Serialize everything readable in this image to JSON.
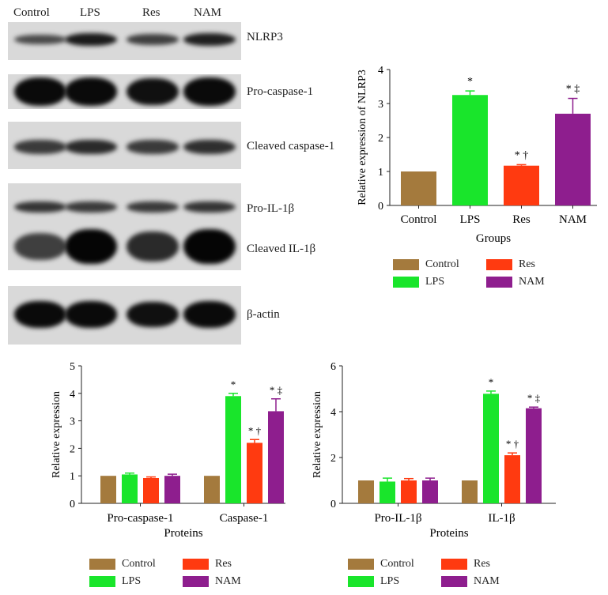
{
  "blot": {
    "lanes": [
      "Control",
      "LPS",
      "Res",
      "NAM"
    ],
    "rows": [
      {
        "label": "NLRP3",
        "intensity": [
          0.35,
          0.8,
          0.45,
          0.75
        ]
      },
      {
        "label": "Pro-caspase-1",
        "intensity": [
          0.95,
          0.95,
          0.9,
          0.95
        ]
      },
      {
        "label": "Cleaved caspase-1",
        "intensity": [
          0.5,
          0.65,
          0.5,
          0.6
        ]
      },
      {
        "label": "Pro-IL-1β",
        "intensity": [
          0.55,
          0.5,
          0.5,
          0.55
        ]
      },
      {
        "label": "Cleaved IL-1β",
        "intensity": [
          0.45,
          1.0,
          0.65,
          1.0
        ]
      },
      {
        "label": "β-actin",
        "intensity": [
          0.95,
          0.95,
          0.9,
          0.95
        ]
      }
    ]
  },
  "colors": {
    "Control": "#a47a3d",
    "LPS": "#19e52b",
    "Res": "#ff3a10",
    "NAM": "#8e1e8e"
  },
  "chart_data": [
    {
      "type": "bar",
      "categories": [
        "Control",
        "LPS",
        "Res",
        "NAM"
      ],
      "values": [
        1.0,
        3.25,
        1.17,
        2.7
      ],
      "errors": [
        0,
        0.12,
        0.03,
        0.45
      ],
      "annotations": [
        "",
        "*",
        "* †",
        "* ‡"
      ],
      "xlabel": "Groups",
      "ylabel": "Relative expression of NLRP3",
      "ylim": [
        0,
        4
      ],
      "yticks": [
        0,
        1,
        2,
        3,
        4
      ],
      "legend": [
        "Control",
        "LPS",
        "Res",
        "NAM"
      ]
    },
    {
      "type": "bar",
      "categories": [
        "Pro-caspase-1",
        "Caspase-1"
      ],
      "series": [
        {
          "name": "Control",
          "values": [
            1.0,
            1.0
          ],
          "errors": [
            0,
            0
          ],
          "annotations": [
            "",
            ""
          ]
        },
        {
          "name": "LPS",
          "values": [
            1.05,
            3.9
          ],
          "errors": [
            0.05,
            0.1
          ],
          "annotations": [
            "",
            "*"
          ]
        },
        {
          "name": "Res",
          "values": [
            0.92,
            2.2
          ],
          "errors": [
            0.04,
            0.12
          ],
          "annotations": [
            "",
            "* †"
          ]
        },
        {
          "name": "NAM",
          "values": [
            1.0,
            3.35
          ],
          "errors": [
            0.06,
            0.45
          ],
          "annotations": [
            "",
            "* ‡"
          ]
        }
      ],
      "xlabel": "Proteins",
      "ylabel": "Relative expression",
      "ylim": [
        0,
        5
      ],
      "yticks": [
        0,
        1,
        2,
        3,
        4,
        5
      ]
    },
    {
      "type": "bar",
      "categories": [
        "Pro-IL-1β",
        "IL-1β"
      ],
      "series": [
        {
          "name": "Control",
          "values": [
            1.0,
            1.0
          ],
          "errors": [
            0,
            0
          ],
          "annotations": [
            "",
            ""
          ]
        },
        {
          "name": "LPS",
          "values": [
            0.95,
            4.78
          ],
          "errors": [
            0.15,
            0.12
          ],
          "annotations": [
            "",
            "*"
          ]
        },
        {
          "name": "Res",
          "values": [
            1.0,
            2.1
          ],
          "errors": [
            0.08,
            0.1
          ],
          "annotations": [
            "",
            "* †"
          ]
        },
        {
          "name": "NAM",
          "values": [
            1.0,
            4.15
          ],
          "errors": [
            0.1,
            0.05
          ],
          "annotations": [
            "",
            "* ‡"
          ]
        }
      ],
      "xlabel": "Proteins",
      "ylabel": "Relative expression",
      "ylim": [
        0,
        6
      ],
      "yticks": [
        0,
        2,
        4,
        6
      ]
    }
  ]
}
